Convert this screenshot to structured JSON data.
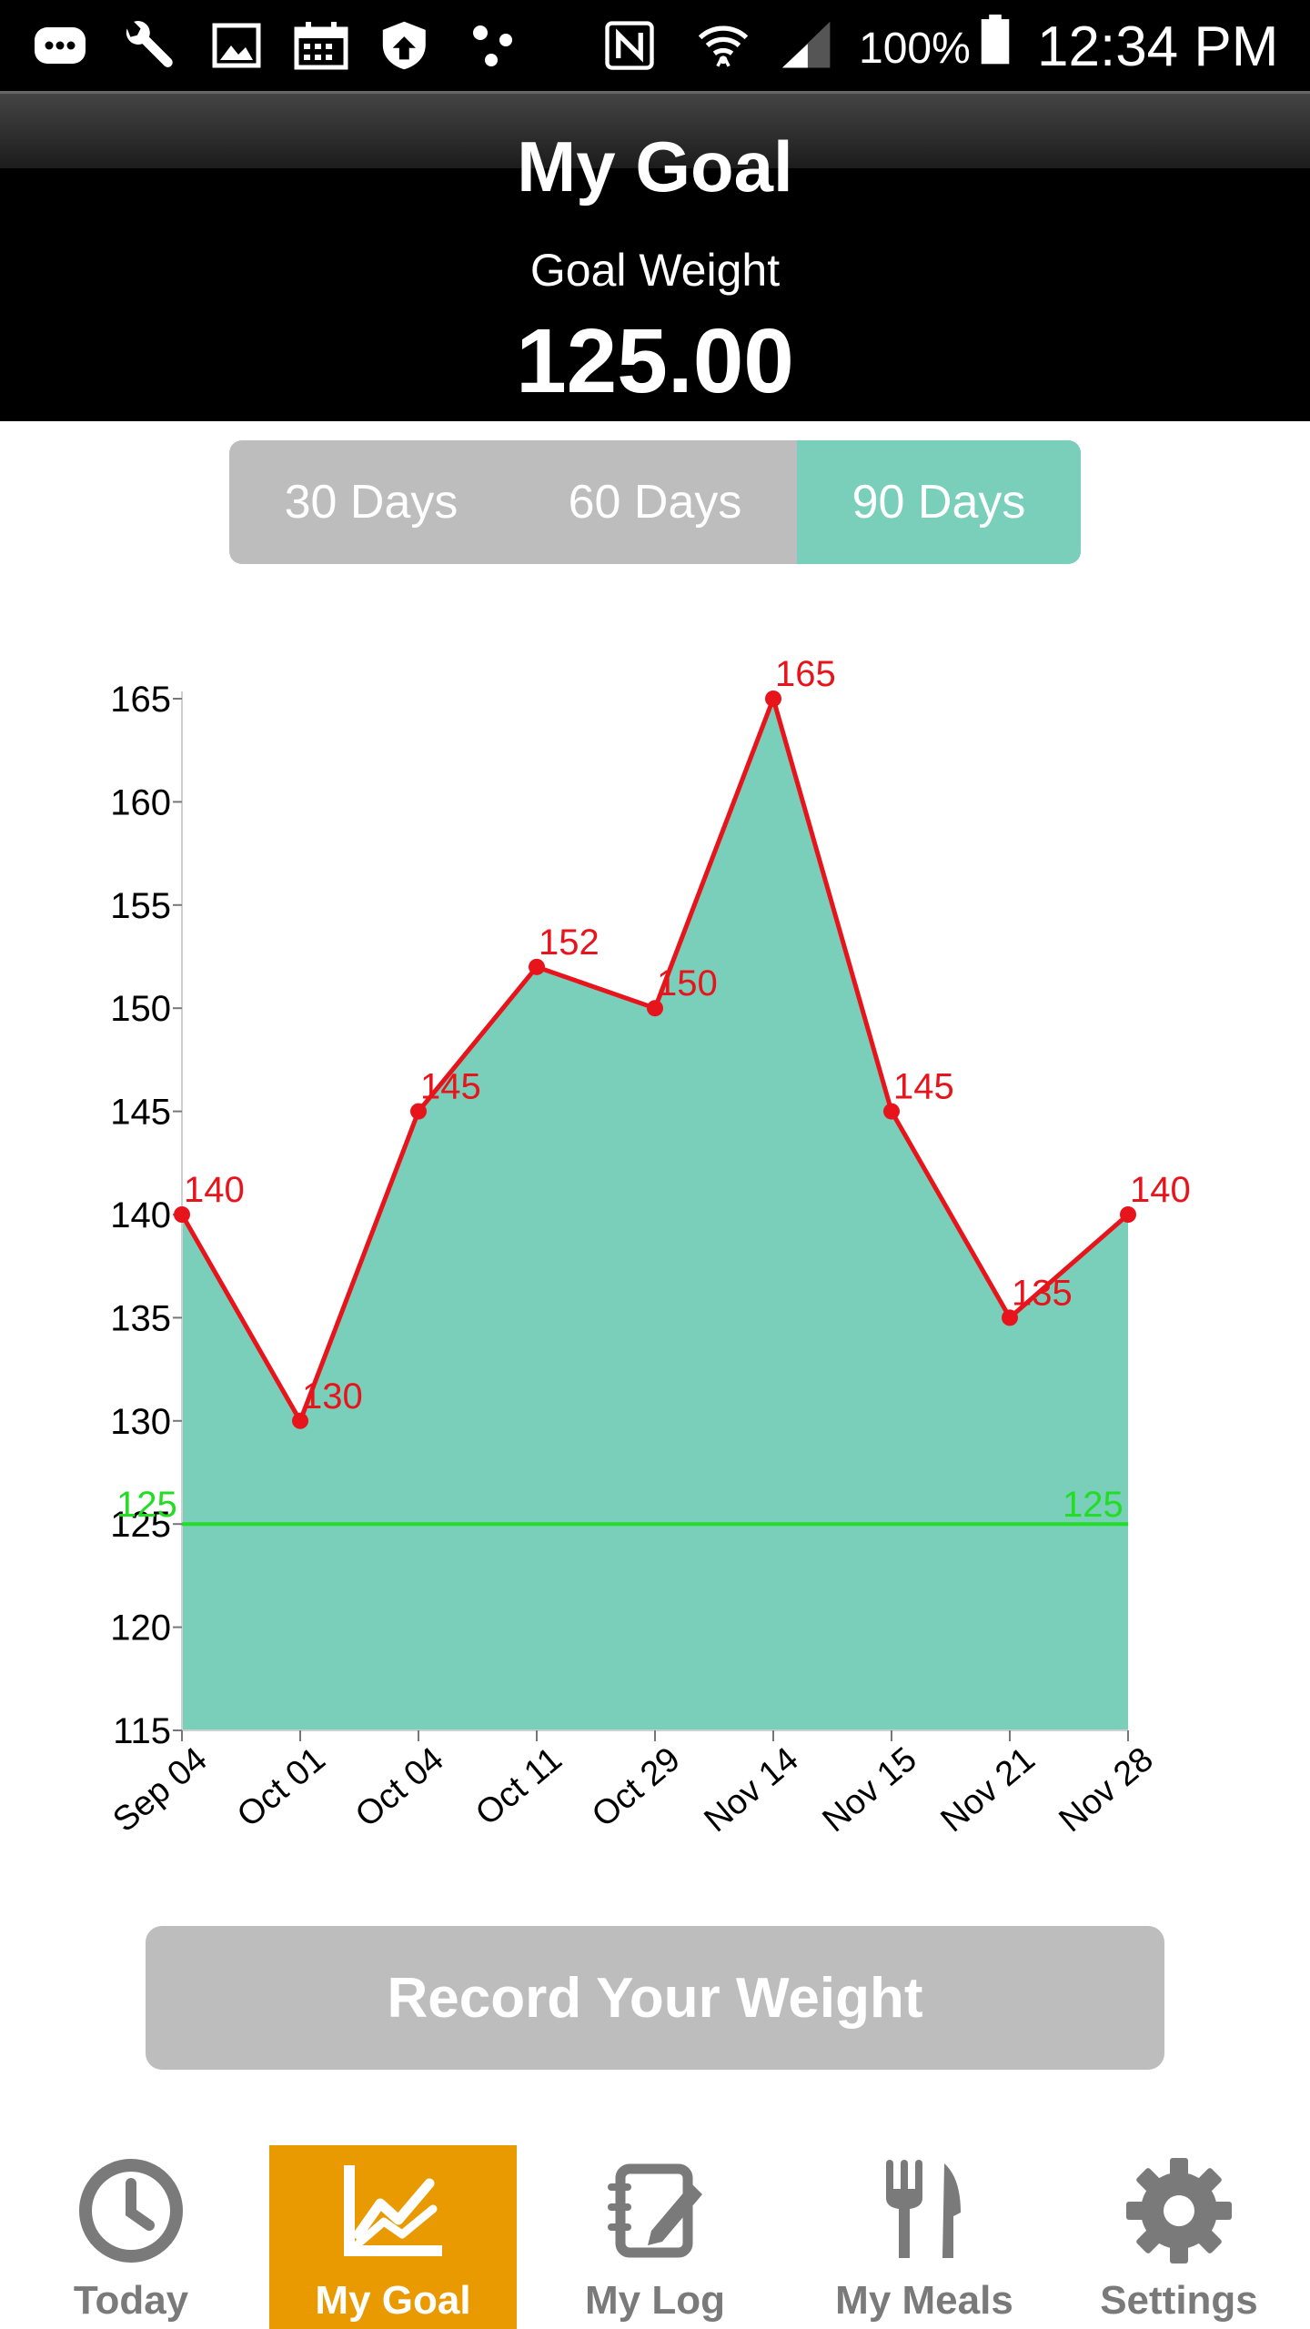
{
  "status_bar": {
    "battery": "100%",
    "time": "12:34 PM",
    "icons": [
      "messenger-icon",
      "wrench-icon",
      "image-icon",
      "calendar-icon",
      "shield-icon",
      "dots-icon",
      "nfc-icon",
      "wifi-icon",
      "signal-icon",
      "battery-icon"
    ]
  },
  "header": {
    "title": "My Goal",
    "goal_label": "Goal Weight",
    "goal_value": "125.00"
  },
  "range_tabs": [
    {
      "label": "30 Days",
      "active": false
    },
    {
      "label": "60 Days",
      "active": false
    },
    {
      "label": "90 Days",
      "active": true
    }
  ],
  "chart_data": {
    "type": "area",
    "categories": [
      "Sep 04",
      "Oct 01",
      "Oct 04",
      "Oct 11",
      "Oct 29",
      "Nov 14",
      "Nov 15",
      "Nov 21",
      "Nov 28"
    ],
    "values": [
      140,
      130,
      145,
      152,
      150,
      165,
      145,
      135,
      140
    ],
    "goal_line": 125,
    "goal_labels": [
      "125",
      "125"
    ],
    "ylim": [
      115,
      165
    ],
    "yticks": [
      165,
      160,
      155,
      150,
      145,
      140,
      135,
      130,
      125,
      120,
      115
    ],
    "colors": {
      "fill": "#79cfba",
      "line": "#e8141b",
      "goal": "#22dd22",
      "axis": "#000000"
    },
    "grid": false,
    "title": "",
    "xlabel": "",
    "ylabel": ""
  },
  "record_button": {
    "label": "Record Your Weight"
  },
  "bottom_tabs": [
    {
      "label": "Today",
      "icon": "clock-icon",
      "active": false
    },
    {
      "label": "My Goal",
      "icon": "chart-icon",
      "active": true
    },
    {
      "label": "My Log",
      "icon": "notebook-icon",
      "active": false
    },
    {
      "label": "My Meals",
      "icon": "fork-knife-icon",
      "active": false
    },
    {
      "label": "Settings",
      "icon": "gear-icon",
      "active": false
    }
  ],
  "colors": {
    "accent": "#79cfba",
    "tab_active": "#e89a00",
    "inactive": "#bdbdbd"
  }
}
